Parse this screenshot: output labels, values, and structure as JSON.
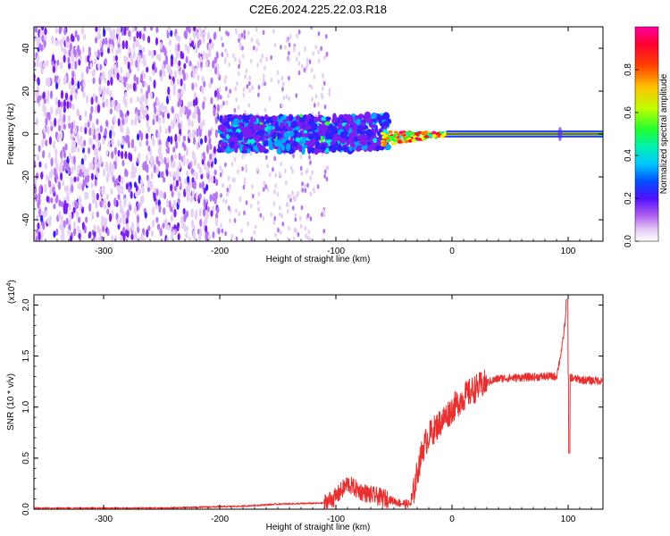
{
  "title": "C2E6.2024.225.22.03.R18",
  "colors": {
    "snr_line": "#e83030",
    "rainbow": [
      "#e6d0f5",
      "#b777f0",
      "#7a1ff0",
      "#3020ff",
      "#00a8ff",
      "#00f0d8",
      "#30ff30",
      "#e8ff00",
      "#ff8000",
      "#ff1010",
      "#ff00a0"
    ]
  },
  "chart_data": [
    {
      "type": "heatmap",
      "xlabel": "Height of straight line (km)",
      "ylabel": "Frequency (Hz)",
      "xlim": [
        -360,
        130
      ],
      "ylim": [
        -50,
        50
      ],
      "xticks": [
        -300,
        -200,
        -100,
        0,
        100
      ],
      "yticks": [
        -40,
        -20,
        0,
        20,
        40
      ],
      "colorbar": {
        "label": "Normalized spectral amplitude",
        "range": [
          0.0,
          1.0
        ],
        "ticks": [
          "0.0",
          "0.2",
          "0.4",
          "0.6",
          "0.8"
        ]
      },
      "features": [
        {
          "x_range": [
            -360,
            -200
          ],
          "freq_range": [
            -50,
            50
          ],
          "amplitude": 0.12
        },
        {
          "x_range": [
            -200,
            -55
          ],
          "freq_range": [
            -8,
            8
          ],
          "amplitude": 0.4
        },
        {
          "x_range": [
            -55,
            130
          ],
          "freq_center": 0,
          "amplitude": 0.95
        }
      ]
    },
    {
      "type": "line",
      "xlabel": "Height of straight line (km)",
      "ylabel": "SNR (10 * v/v)",
      "yscale_label": "(x10",
      "yscale_exp": "4",
      "xlim": [
        -360,
        130
      ],
      "ylim": [
        0.0,
        2.1
      ],
      "xticks": [
        -300,
        -200,
        -100,
        0,
        100
      ],
      "yticks": [
        "0.0",
        "0.5",
        "1.0",
        "1.5",
        "2.0"
      ],
      "series": [
        {
          "x": [
            -360,
            -250,
            -180,
            -150,
            -110,
            -100,
            -90,
            -80,
            -70,
            -55,
            -45,
            -35,
            -30,
            -25,
            -20,
            -10,
            0,
            10,
            20,
            30,
            40,
            60,
            80,
            90,
            95,
            98,
            100,
            105,
            110,
            120,
            130
          ],
          "y": [
            0.01,
            0.01,
            0.03,
            0.05,
            0.06,
            0.12,
            0.25,
            0.18,
            0.14,
            0.1,
            0.06,
            0.05,
            0.35,
            0.6,
            0.72,
            0.85,
            0.98,
            1.1,
            1.18,
            1.24,
            1.28,
            1.29,
            1.3,
            1.3,
            1.6,
            1.9,
            1.3,
            1.28,
            1.27,
            1.26,
            1.26
          ]
        }
      ]
    }
  ]
}
